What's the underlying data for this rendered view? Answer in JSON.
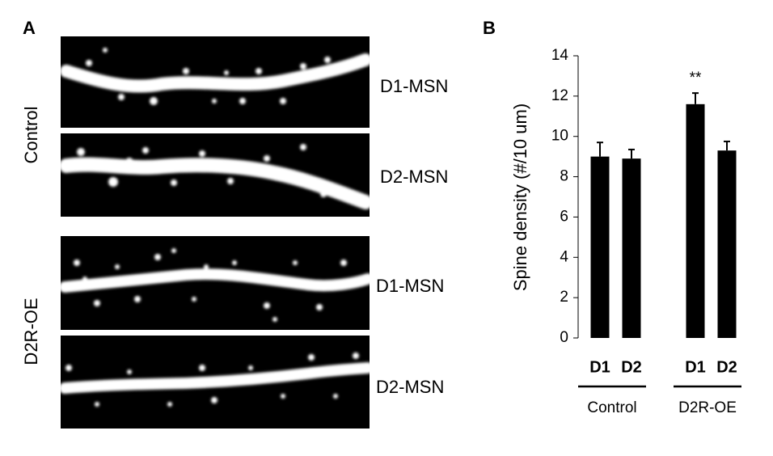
{
  "panel_a": {
    "label": "A",
    "rows": [
      {
        "group": "Control",
        "cells": [
          "D1-MSN",
          "D2-MSN"
        ]
      },
      {
        "group": "D2R-OE",
        "cells": [
          "D1-MSN",
          "D2-MSN"
        ]
      }
    ]
  },
  "chart_data": {
    "type": "bar",
    "panel_label": "B",
    "ylabel": "Spine density (#/10 um)",
    "ylim": [
      0,
      14
    ],
    "yticks": [
      0,
      2,
      4,
      6,
      8,
      10,
      12,
      14
    ],
    "color": "#000000",
    "groups": [
      {
        "name": "Control",
        "categories": [
          "D1",
          "D2"
        ],
        "values": [
          9.0,
          8.9
        ],
        "errors": [
          0.7,
          0.45
        ],
        "annotations": [
          null,
          null
        ]
      },
      {
        "name": "D2R-OE",
        "categories": [
          "D1",
          "D2"
        ],
        "values": [
          11.6,
          9.3
        ],
        "errors": [
          0.55,
          0.45
        ],
        "annotations": [
          "**",
          null
        ]
      }
    ]
  }
}
